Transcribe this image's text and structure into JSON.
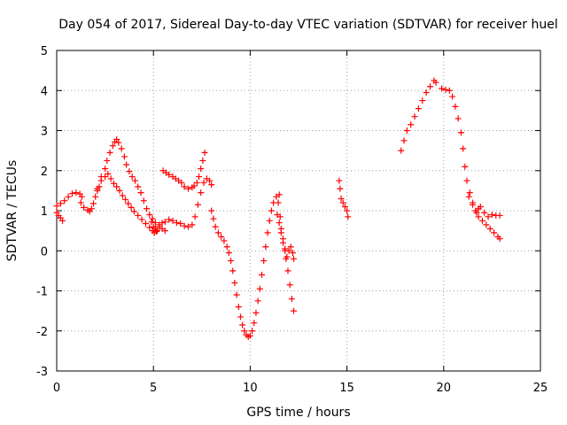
{
  "chart_data": {
    "type": "scatter",
    "title": "Day 054 of 2017, Sidereal Day-to-day VTEC variation (SDTVAR) for receiver huel",
    "xlabel": "GPS time / hours",
    "ylabel": "SDTVAR / TECUs",
    "xlim": [
      0,
      25
    ],
    "ylim": [
      -3,
      5
    ],
    "xticks": [
      "0",
      "5",
      "10",
      "15",
      "20",
      "25"
    ],
    "yticks": [
      "-3",
      "-2",
      "-1",
      "0",
      "1",
      "2",
      "3",
      "4",
      "5"
    ],
    "grid": true,
    "marker": "+",
    "color": "#ff0000",
    "series": [
      {
        "points": [
          [
            0.0,
            0.95
          ],
          [
            0.1,
            0.88
          ],
          [
            0.2,
            0.82
          ],
          [
            0.3,
            0.75
          ],
          [
            0.0,
            1.12
          ],
          [
            0.2,
            1.18
          ],
          [
            0.4,
            1.25
          ],
          [
            0.6,
            1.35
          ],
          [
            0.8,
            1.43
          ],
          [
            1.0,
            1.45
          ],
          [
            1.2,
            1.42
          ],
          [
            1.3,
            1.35
          ],
          [
            1.25,
            1.2
          ],
          [
            1.4,
            1.08
          ],
          [
            1.6,
            1.02
          ],
          [
            1.7,
            0.98
          ],
          [
            1.8,
            1.05
          ],
          [
            1.9,
            1.18
          ],
          [
            2.0,
            1.35
          ],
          [
            2.1,
            1.5
          ],
          [
            2.2,
            1.6
          ],
          [
            2.3,
            1.75
          ],
          [
            2.1,
            1.55
          ],
          [
            2.3,
            1.85
          ],
          [
            2.5,
            2.05
          ],
          [
            2.6,
            2.25
          ],
          [
            2.75,
            2.45
          ],
          [
            2.9,
            2.62
          ],
          [
            3.0,
            2.72
          ],
          [
            3.1,
            2.78
          ],
          [
            3.2,
            2.7
          ],
          [
            3.35,
            2.55
          ],
          [
            3.5,
            2.35
          ],
          [
            3.6,
            2.15
          ],
          [
            3.75,
            1.98
          ],
          [
            3.9,
            1.85
          ],
          [
            4.05,
            1.75
          ],
          [
            4.2,
            1.6
          ],
          [
            4.35,
            1.45
          ],
          [
            4.5,
            1.25
          ],
          [
            4.65,
            1.05
          ],
          [
            4.8,
            0.9
          ],
          [
            4.9,
            0.72
          ],
          [
            5.0,
            0.6
          ],
          [
            5.1,
            0.55
          ],
          [
            5.2,
            0.5
          ],
          [
            2.5,
            1.85
          ],
          [
            2.65,
            1.92
          ],
          [
            2.8,
            1.8
          ],
          [
            2.95,
            1.68
          ],
          [
            3.1,
            1.6
          ],
          [
            3.25,
            1.5
          ],
          [
            3.4,
            1.38
          ],
          [
            3.55,
            1.28
          ],
          [
            3.7,
            1.18
          ],
          [
            3.85,
            1.08
          ],
          [
            4.0,
            0.98
          ],
          [
            4.2,
            0.88
          ],
          [
            4.4,
            0.78
          ],
          [
            4.6,
            0.68
          ],
          [
            4.8,
            0.58
          ],
          [
            4.95,
            0.5
          ],
          [
            5.05,
            0.45
          ],
          [
            5.15,
            0.48
          ],
          [
            5.3,
            0.6
          ],
          [
            5.45,
            0.7
          ],
          [
            5.6,
            0.72
          ],
          [
            5.8,
            0.78
          ],
          [
            6.0,
            0.75
          ],
          [
            6.2,
            0.7
          ],
          [
            6.4,
            0.68
          ],
          [
            6.6,
            0.62
          ],
          [
            6.8,
            0.6
          ],
          [
            7.0,
            0.65
          ],
          [
            7.15,
            0.85
          ],
          [
            7.3,
            1.15
          ],
          [
            7.45,
            1.45
          ],
          [
            7.6,
            1.7
          ],
          [
            7.75,
            1.8
          ],
          [
            7.9,
            1.75
          ],
          [
            8.0,
            1.65
          ],
          [
            4.95,
            0.8
          ],
          [
            5.1,
            0.7
          ],
          [
            5.3,
            0.65
          ],
          [
            5.45,
            0.55
          ],
          [
            5.6,
            0.5
          ],
          [
            5.5,
            2.0
          ],
          [
            5.65,
            1.95
          ],
          [
            5.8,
            1.9
          ],
          [
            6.0,
            1.85
          ],
          [
            6.15,
            1.8
          ],
          [
            6.3,
            1.75
          ],
          [
            6.45,
            1.7
          ],
          [
            6.6,
            1.6
          ],
          [
            6.8,
            1.55
          ],
          [
            7.0,
            1.58
          ],
          [
            7.1,
            1.62
          ],
          [
            7.25,
            1.7
          ],
          [
            7.35,
            1.85
          ],
          [
            7.45,
            2.05
          ],
          [
            7.55,
            2.25
          ],
          [
            7.65,
            2.45
          ],
          [
            8.0,
            1.0
          ],
          [
            8.1,
            0.8
          ],
          [
            8.2,
            0.6
          ],
          [
            8.35,
            0.45
          ],
          [
            8.5,
            0.35
          ],
          [
            8.65,
            0.25
          ],
          [
            8.8,
            0.1
          ],
          [
            8.9,
            -0.05
          ],
          [
            9.0,
            -0.25
          ],
          [
            9.1,
            -0.5
          ],
          [
            9.2,
            -0.8
          ],
          [
            9.3,
            -1.1
          ],
          [
            9.4,
            -1.4
          ],
          [
            9.5,
            -1.65
          ],
          [
            9.6,
            -1.85
          ],
          [
            9.7,
            -2.0
          ],
          [
            9.8,
            -2.1
          ],
          [
            9.9,
            -2.15
          ],
          [
            10.0,
            -2.12
          ],
          [
            10.1,
            -2.0
          ],
          [
            10.2,
            -1.8
          ],
          [
            10.3,
            -1.55
          ],
          [
            10.4,
            -1.25
          ],
          [
            10.5,
            -0.95
          ],
          [
            10.6,
            -0.6
          ],
          [
            10.7,
            -0.25
          ],
          [
            10.8,
            0.1
          ],
          [
            10.9,
            0.45
          ],
          [
            11.0,
            0.75
          ],
          [
            11.1,
            1.0
          ],
          [
            11.2,
            1.2
          ],
          [
            11.35,
            1.35
          ],
          [
            11.5,
            1.4
          ],
          [
            11.45,
            1.2
          ],
          [
            11.55,
            0.85
          ],
          [
            11.6,
            0.55
          ],
          [
            11.7,
            0.3
          ],
          [
            11.8,
            0.05
          ],
          [
            11.85,
            -0.2
          ],
          [
            11.95,
            -0.5
          ],
          [
            12.05,
            -0.85
          ],
          [
            12.15,
            -1.2
          ],
          [
            12.25,
            -1.5
          ],
          [
            11.4,
            0.9
          ],
          [
            11.5,
            0.7
          ],
          [
            11.6,
            0.45
          ],
          [
            11.7,
            0.2
          ],
          [
            11.8,
            0.0
          ],
          [
            11.9,
            -0.15
          ],
          [
            12.0,
            0.0
          ],
          [
            12.1,
            0.1
          ],
          [
            12.2,
            -0.05
          ],
          [
            12.25,
            -0.2
          ],
          [
            14.6,
            1.75
          ],
          [
            14.65,
            1.55
          ],
          [
            14.7,
            1.3
          ],
          [
            14.8,
            1.2
          ],
          [
            14.9,
            1.1
          ],
          [
            15.0,
            1.0
          ],
          [
            15.05,
            0.85
          ],
          [
            17.8,
            2.5
          ],
          [
            17.95,
            2.75
          ],
          [
            18.1,
            3.0
          ],
          [
            18.3,
            3.15
          ],
          [
            18.5,
            3.35
          ],
          [
            18.7,
            3.55
          ],
          [
            18.9,
            3.75
          ],
          [
            19.1,
            3.95
          ],
          [
            19.3,
            4.1
          ],
          [
            19.5,
            4.25
          ],
          [
            19.6,
            4.2
          ],
          [
            19.9,
            4.05
          ],
          [
            20.1,
            4.02
          ],
          [
            20.3,
            4.0
          ],
          [
            20.45,
            3.85
          ],
          [
            20.6,
            3.6
          ],
          [
            20.75,
            3.3
          ],
          [
            20.9,
            2.95
          ],
          [
            21.0,
            2.55
          ],
          [
            21.1,
            2.1
          ],
          [
            21.2,
            1.75
          ],
          [
            21.35,
            1.45
          ],
          [
            21.5,
            1.2
          ],
          [
            21.65,
            1.0
          ],
          [
            21.8,
            0.85
          ],
          [
            22.0,
            0.75
          ],
          [
            22.2,
            0.65
          ],
          [
            22.4,
            0.55
          ],
          [
            22.6,
            0.45
          ],
          [
            22.8,
            0.35
          ],
          [
            22.9,
            0.3
          ],
          [
            21.3,
            1.35
          ],
          [
            21.5,
            1.15
          ],
          [
            21.7,
            0.95
          ],
          [
            21.8,
            1.05
          ],
          [
            21.9,
            1.1
          ],
          [
            22.1,
            0.95
          ],
          [
            22.3,
            0.85
          ],
          [
            22.5,
            0.9
          ],
          [
            22.7,
            0.88
          ],
          [
            22.9,
            0.88
          ]
        ]
      }
    ]
  }
}
